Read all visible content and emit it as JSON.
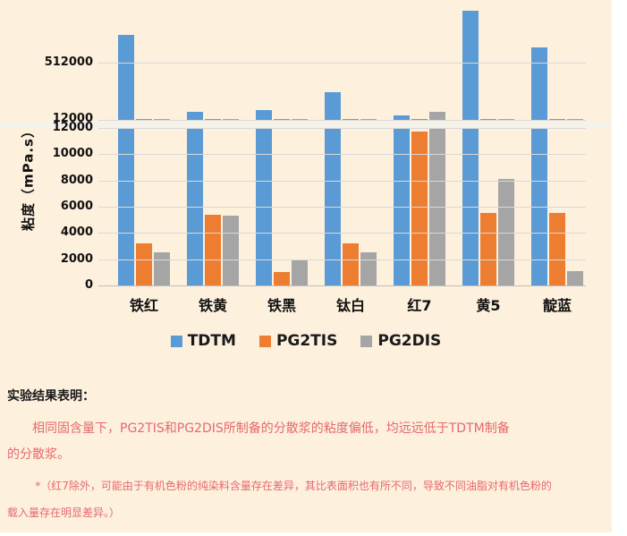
{
  "chart": {
    "y_axis_title": "粘度（mPa.s）",
    "upper_ticks": [
      "512000",
      "12000"
    ],
    "lower_ticks": [
      "12000",
      "10000",
      "8000",
      "6000",
      "4000",
      "2000",
      "0"
    ]
  },
  "chart_data": {
    "type": "bar",
    "title": "",
    "xlabel": "",
    "ylabel": "粘度（mPa.s）",
    "categories": [
      "铁红",
      "铁黄",
      "铁黑",
      "钛白",
      "红7",
      "黄5",
      "靛蓝"
    ],
    "series": [
      {
        "name": "TDTM",
        "color": "#5b9bd5",
        "values": [
          750000,
          90000,
          105000,
          256000,
          55000,
          960000,
          640000
        ]
      },
      {
        "name": "PG2TIS",
        "color": "#ed7d31",
        "values": [
          3200,
          5400,
          1000,
          3200,
          11700,
          5500,
          5500
        ]
      },
      {
        "name": "PG2DIS",
        "color": "#a5a5a5",
        "values": [
          2500,
          5300,
          2000,
          2500,
          90000,
          8100,
          1100
        ]
      }
    ],
    "axis_break": {
      "break_value": 12000,
      "lower_range": [
        0,
        12000
      ],
      "lower_tick_step": 2000,
      "upper_range": [
        12000,
        980000
      ],
      "upper_gridline": 512000
    },
    "grid": true,
    "legend_position": "bottom"
  },
  "notes": {
    "heading": "实验结果表明：",
    "body": "相同固含量下，PG2TIS和PG2DIS所制备的分散浆的粘度偏低，均远远低于TDTM制备\n的分散浆。",
    "footnote": "*（红7除外，可能由于有机色粉的纯染料含量存在差异，其比表面积也有所不同，导致不同油脂对有机色粉的\n载入量存在明显差异。）"
  },
  "colors": {
    "background": "#fdf0dd",
    "page_margin": "#ffffff",
    "gridline": "#d9d9d9",
    "axis_line": "#bfbfbf",
    "break_band": "#f5f2ea",
    "series_blue": "#5b9bd5",
    "series_orange": "#ed7d31",
    "series_gray": "#a5a5a5",
    "note_red": "#e5696e",
    "text_black": "#111111"
  }
}
